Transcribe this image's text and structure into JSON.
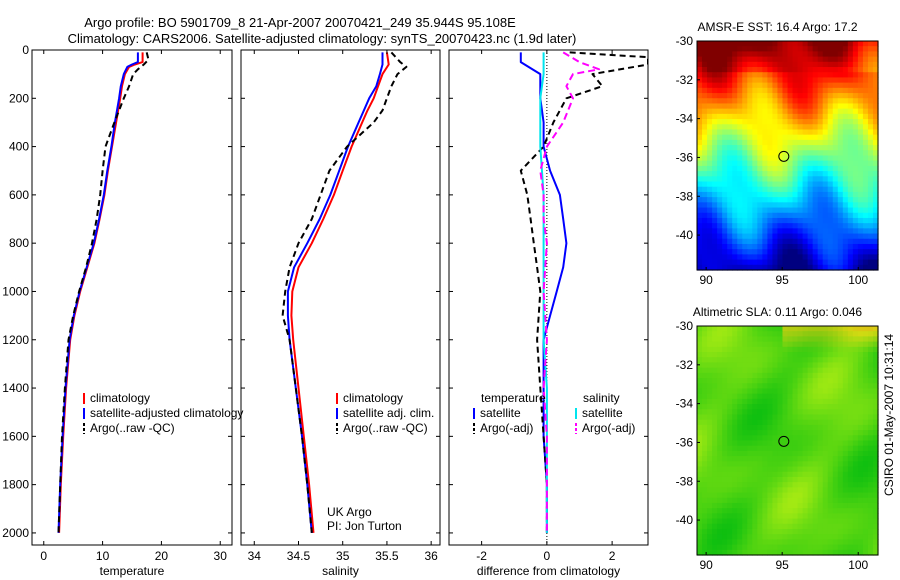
{
  "header": {
    "title_line1": "Argo profile: BO 5901709_8 21-Apr-2007 20070421_249 35.944S 95.108E",
    "title_line2": "Climatology: CARS2006. Satellite-adjusted climatology: synTS_20070423.nc (1.9d later)"
  },
  "side_label": "CSIRO 01-May-2007 10:31:14",
  "colors": {
    "climatology": "#ff0000",
    "satellite": "#0000ff",
    "argo": "#000000",
    "salinity_satellite": "#00e5ee",
    "salinity_argo": "#ff00ff"
  },
  "chart_data": [
    {
      "type": "line",
      "xlabel": "temperature",
      "xlim": [
        -2,
        32
      ],
      "xticks": [
        0,
        10,
        20,
        30
      ],
      "ylim": [
        2050,
        0
      ],
      "yticks": [
        0,
        200,
        400,
        600,
        800,
        1000,
        1200,
        1400,
        1600,
        1800,
        2000
      ],
      "legend": [
        "climatology",
        "satellite-adjusted climatology",
        "Argo(..raw -QC)"
      ],
      "series": [
        {
          "name": "climatology",
          "color": "#ff0000",
          "dash": "",
          "depth": [
            10,
            50,
            60,
            70,
            100,
            150,
            200,
            300,
            400,
            500,
            600,
            700,
            800,
            900,
            1000,
            1100,
            1200,
            1400,
            1600,
            1800,
            2000
          ],
          "values": [
            16.8,
            16.8,
            15.5,
            14.5,
            13.8,
            13.3,
            13.0,
            12.3,
            11.6,
            10.9,
            10.3,
            9.5,
            8.6,
            7.4,
            6.2,
            5.2,
            4.5,
            3.8,
            3.3,
            2.9,
            2.6
          ]
        },
        {
          "name": "satellite-adjusted climatology",
          "color": "#0000ff",
          "dash": "",
          "depth": [
            10,
            50,
            60,
            70,
            100,
            150,
            200,
            300,
            400,
            500,
            600,
            700,
            800,
            900,
            1000,
            1100,
            1200,
            1400,
            1600,
            1800,
            2000
          ],
          "values": [
            16.0,
            16.0,
            15.0,
            14.2,
            13.6,
            13.1,
            12.8,
            12.1,
            11.5,
            10.8,
            10.2,
            9.4,
            8.5,
            7.3,
            6.1,
            5.1,
            4.4,
            3.7,
            3.2,
            2.8,
            2.5
          ]
        },
        {
          "name": "Argo(..raw -QC)",
          "color": "#000000",
          "dash": "6,4",
          "depth": [
            10,
            40,
            60,
            80,
            100,
            150,
            200,
            300,
            400,
            500,
            600,
            700,
            800,
            900,
            1000,
            1100,
            1200,
            1400,
            1600,
            1800,
            2000
          ],
          "values": [
            17.5,
            17.8,
            17.0,
            16.0,
            15.2,
            14.5,
            13.6,
            12.0,
            10.5,
            10.0,
            9.6,
            9.0,
            8.2,
            7.2,
            6.0,
            5.0,
            4.2,
            3.6,
            3.1,
            2.8,
            2.5
          ]
        }
      ]
    },
    {
      "type": "line",
      "xlabel": "salinity",
      "xlim": [
        33.85,
        36.1
      ],
      "xticks": [
        34,
        34.5,
        35,
        35.5,
        36
      ],
      "ylim": [
        2050,
        0
      ],
      "legend": [
        "climatology",
        "satellite adj. clim.",
        "Argo(..raw -QC)"
      ],
      "annotation": [
        "UK Argo",
        "PI: Jon Turton"
      ],
      "series": [
        {
          "name": "climatology",
          "color": "#ff0000",
          "dash": "",
          "depth": [
            10,
            60,
            100,
            150,
            200,
            250,
            300,
            400,
            500,
            600,
            700,
            800,
            900,
            1000,
            1100,
            1200,
            1400,
            1600,
            1800,
            2000
          ],
          "values": [
            35.5,
            35.52,
            35.45,
            35.4,
            35.35,
            35.28,
            35.22,
            35.1,
            35.0,
            34.9,
            34.78,
            34.65,
            34.5,
            34.43,
            34.42,
            34.44,
            34.5,
            34.56,
            34.62,
            34.67
          ]
        },
        {
          "name": "satellite adj. clim.",
          "color": "#0000ff",
          "dash": "",
          "depth": [
            10,
            60,
            100,
            150,
            200,
            250,
            300,
            400,
            500,
            600,
            700,
            800,
            900,
            1000,
            1100,
            1200,
            1400,
            1600,
            1800,
            2000
          ],
          "values": [
            35.45,
            35.45,
            35.42,
            35.38,
            35.3,
            35.24,
            35.18,
            35.06,
            34.96,
            34.86,
            34.74,
            34.6,
            34.45,
            34.38,
            34.38,
            34.4,
            34.47,
            34.54,
            34.6,
            34.65
          ]
        },
        {
          "name": "Argo(..raw -QC)",
          "color": "#000000",
          "dash": "6,4",
          "depth": [
            10,
            50,
            70,
            100,
            150,
            200,
            250,
            300,
            400,
            500,
            600,
            700,
            800,
            900,
            1000,
            1100,
            1200,
            1400,
            1600,
            1800,
            2000
          ],
          "values": [
            35.55,
            35.65,
            35.72,
            35.62,
            35.55,
            35.5,
            35.45,
            35.35,
            35.05,
            34.85,
            34.75,
            34.65,
            34.5,
            34.4,
            34.35,
            34.32,
            34.4,
            34.47,
            34.54,
            34.6,
            34.65
          ]
        }
      ]
    },
    {
      "type": "line",
      "xlabel": "difference from climatology",
      "xlim": [
        -3,
        3.1
      ],
      "xticks": [
        -2,
        0,
        2
      ],
      "ylim": [
        2050,
        0
      ],
      "legend_temperature": {
        "heading": "temperature",
        "items": [
          "satellite",
          "Argo(-adj)"
        ]
      },
      "legend_salinity": {
        "heading": "salinity",
        "items": [
          "satellite",
          "Argo(-adj)"
        ]
      },
      "series": [
        {
          "name": "temperature satellite",
          "color": "#0000ff",
          "dash": "",
          "depth": [
            10,
            50,
            100,
            200,
            300,
            400,
            500,
            600,
            700,
            800,
            900,
            1000,
            1100,
            1200,
            1400,
            1600,
            1800,
            2000
          ],
          "values": [
            -0.8,
            -0.8,
            -0.2,
            -0.2,
            -0.1,
            -0.1,
            0.1,
            0.4,
            0.5,
            0.6,
            0.5,
            0.3,
            0.1,
            -0.1,
            -0.1,
            -0.1,
            0.0,
            0.0
          ]
        },
        {
          "name": "temperature Argo(-adj)",
          "color": "#000000",
          "dash": "6,4",
          "depth": [
            10,
            30,
            60,
            100,
            150,
            200,
            300,
            400,
            500,
            600,
            700,
            800,
            900,
            1000,
            1200,
            1400,
            1600,
            1800,
            2000
          ],
          "values": [
            0.7,
            3.1,
            3.1,
            1.4,
            1.7,
            0.6,
            0.2,
            -0.1,
            -0.8,
            -0.6,
            -0.5,
            -0.4,
            -0.3,
            -0.2,
            -0.3,
            -0.2,
            -0.1,
            0.0,
            0.0
          ]
        },
        {
          "name": "salinity satellite",
          "color": "#00e5ee",
          "dash": "",
          "depth": [
            10,
            100,
            200,
            400,
            600,
            800,
            1000,
            1200,
            1400,
            1600,
            1800,
            2000
          ],
          "values": [
            -0.1,
            -0.1,
            -0.2,
            -0.2,
            -0.1,
            -0.1,
            -0.1,
            -0.1,
            0.0,
            0.0,
            0.0,
            0.0
          ]
        },
        {
          "name": "salinity Argo(-adj)",
          "color": "#ff00ff",
          "dash": "7,4",
          "depth": [
            10,
            50,
            80,
            100,
            150,
            200,
            300,
            400,
            500,
            600,
            700,
            800,
            1000,
            1200,
            1400,
            1600,
            1800,
            2000
          ],
          "values": [
            0.5,
            1.0,
            1.6,
            0.8,
            0.6,
            0.8,
            0.5,
            0.0,
            -0.2,
            -0.1,
            -0.1,
            0.0,
            -0.1,
            0.0,
            -0.1,
            0.0,
            0.0,
            0.0
          ]
        }
      ]
    },
    {
      "type": "heatmap",
      "title": "AMSR-E SST: 16.4 Argo: 17.2",
      "xlim": [
        89.4,
        101.3
      ],
      "ylim": [
        -41.8,
        -30
      ],
      "xticks": [
        90,
        95,
        100
      ],
      "yticks": [
        -30,
        -32,
        -34,
        -36,
        -38,
        -40
      ],
      "marker": {
        "lon": 95.108,
        "lat": -35.944
      }
    },
    {
      "type": "heatmap",
      "title": "Altimetric SLA: 0.11 Argo: 0.046",
      "xlim": [
        89.4,
        101.3
      ],
      "ylim": [
        -41.8,
        -30
      ],
      "xticks": [
        90,
        95,
        100
      ],
      "yticks": [
        -30,
        -32,
        -34,
        -36,
        -38,
        -40
      ],
      "marker": {
        "lon": 95.108,
        "lat": -35.944
      }
    }
  ]
}
